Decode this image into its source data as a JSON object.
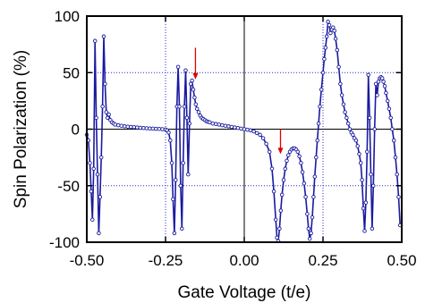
{
  "chart_data": {
    "type": "line",
    "title": "",
    "xlabel": "Gate Voltage (t/e)",
    "ylabel": "Spin Polarization (%)",
    "xlim": [
      -0.5,
      0.5
    ],
    "ylim": [
      -100,
      100
    ],
    "xticks": [
      -0.5,
      -0.25,
      0.0,
      0.25,
      0.5
    ],
    "xtick_labels": [
      "-0.50",
      "-0.25",
      "0.00",
      "0.25",
      "0.50"
    ],
    "yticks": [
      -100,
      -50,
      0,
      50,
      100
    ],
    "ytick_labels": [
      "-100",
      "-50",
      "0",
      "50",
      "100"
    ],
    "grid": "dotted at x = -0.25, 0.25 and y = -50, 50; solid zero lines",
    "colors": {
      "series": "#1a1aa0",
      "arrow": "#e00000",
      "grid": "#2a2ad0",
      "axis": "#000000"
    },
    "series": [
      {
        "marker": "open-circle",
        "points": [
          [
            -0.5,
            -5
          ],
          [
            -0.495,
            -10
          ],
          [
            -0.49,
            -30
          ],
          [
            -0.486,
            -55
          ],
          [
            -0.482,
            -80
          ],
          [
            -0.478,
            -35
          ],
          [
            -0.474,
            78
          ],
          [
            -0.47,
            10
          ],
          [
            -0.466,
            -40
          ],
          [
            -0.462,
            -92
          ],
          [
            -0.458,
            -60
          ],
          [
            -0.454,
            -25
          ],
          [
            -0.45,
            20
          ],
          [
            -0.446,
            82
          ],
          [
            -0.442,
            40
          ],
          [
            -0.438,
            15
          ],
          [
            -0.434,
            10
          ],
          [
            -0.43,
            13
          ],
          [
            -0.425,
            8
          ],
          [
            -0.42,
            6
          ],
          [
            -0.415,
            5
          ],
          [
            -0.41,
            4
          ],
          [
            -0.4,
            3.5
          ],
          [
            -0.39,
            3
          ],
          [
            -0.38,
            2.5
          ],
          [
            -0.37,
            2.2
          ],
          [
            -0.36,
            2
          ],
          [
            -0.35,
            1.8
          ],
          [
            -0.34,
            1.5
          ],
          [
            -0.33,
            1.2
          ],
          [
            -0.32,
            1
          ],
          [
            -0.31,
            0.8
          ],
          [
            -0.3,
            0.6
          ],
          [
            -0.29,
            0.5
          ],
          [
            -0.28,
            0.3
          ],
          [
            -0.27,
            0.2
          ],
          [
            -0.26,
            0
          ],
          [
            -0.25,
            -0.3
          ],
          [
            -0.245,
            -1
          ],
          [
            -0.24,
            -3
          ],
          [
            -0.235,
            -10
          ],
          [
            -0.23,
            -30
          ],
          [
            -0.226,
            -62
          ],
          [
            -0.222,
            -92
          ],
          [
            -0.218,
            -45
          ],
          [
            -0.214,
            20
          ],
          [
            -0.21,
            55
          ],
          [
            -0.206,
            20
          ],
          [
            -0.202,
            -50
          ],
          [
            -0.198,
            -88
          ],
          [
            -0.194,
            -30
          ],
          [
            -0.19,
            20
          ],
          [
            -0.186,
            52
          ],
          [
            -0.182,
            10
          ],
          [
            -0.178,
            -40
          ],
          [
            -0.174,
            5
          ],
          [
            -0.17,
            40
          ],
          [
            -0.166,
            43
          ],
          [
            -0.162,
            35
          ],
          [
            -0.158,
            28
          ],
          [
            -0.154,
            22
          ],
          [
            -0.15,
            18
          ],
          [
            -0.145,
            15
          ],
          [
            -0.14,
            12
          ],
          [
            -0.135,
            10
          ],
          [
            -0.13,
            9
          ],
          [
            -0.125,
            8
          ],
          [
            -0.12,
            7
          ],
          [
            -0.115,
            6.5
          ],
          [
            -0.11,
            6
          ],
          [
            -0.1,
            5
          ],
          [
            -0.09,
            4.5
          ],
          [
            -0.08,
            4
          ],
          [
            -0.07,
            3.5
          ],
          [
            -0.06,
            3
          ],
          [
            -0.05,
            2.5
          ],
          [
            -0.04,
            2
          ],
          [
            -0.03,
            1.5
          ],
          [
            -0.02,
            1
          ],
          [
            -0.01,
            0.5
          ],
          [
            0.0,
            0
          ],
          [
            0.01,
            -0.5
          ],
          [
            0.02,
            -1
          ],
          [
            0.03,
            -2
          ],
          [
            0.04,
            -3.5
          ],
          [
            0.05,
            -5
          ],
          [
            0.06,
            -8
          ],
          [
            0.07,
            -13
          ],
          [
            0.08,
            -20
          ],
          [
            0.088,
            -35
          ],
          [
            0.094,
            -55
          ],
          [
            0.1,
            -80
          ],
          [
            0.104,
            -96
          ],
          [
            0.108,
            -99
          ],
          [
            0.112,
            -88
          ],
          [
            0.116,
            -72
          ],
          [
            0.12,
            -58
          ],
          [
            0.125,
            -45
          ],
          [
            0.13,
            -35
          ],
          [
            0.135,
            -28
          ],
          [
            0.14,
            -23
          ],
          [
            0.145,
            -20
          ],
          [
            0.15,
            -18
          ],
          [
            0.155,
            -17
          ],
          [
            0.16,
            -17
          ],
          [
            0.165,
            -18
          ],
          [
            0.17,
            -20
          ],
          [
            0.175,
            -24
          ],
          [
            0.18,
            -30
          ],
          [
            0.185,
            -38
          ],
          [
            0.19,
            -48
          ],
          [
            0.195,
            -60
          ],
          [
            0.2,
            -75
          ],
          [
            0.204,
            -88
          ],
          [
            0.208,
            -97
          ],
          [
            0.212,
            -92
          ],
          [
            0.216,
            -78
          ],
          [
            0.22,
            -60
          ],
          [
            0.224,
            -42
          ],
          [
            0.228,
            -25
          ],
          [
            0.232,
            -10
          ],
          [
            0.236,
            5
          ],
          [
            0.24,
            20
          ],
          [
            0.245,
            35
          ],
          [
            0.25,
            50
          ],
          [
            0.254,
            62
          ],
          [
            0.258,
            72
          ],
          [
            0.262,
            82
          ],
          [
            0.266,
            95
          ],
          [
            0.27,
            92
          ],
          [
            0.274,
            85
          ],
          [
            0.278,
            88
          ],
          [
            0.282,
            90
          ],
          [
            0.286,
            87
          ],
          [
            0.29,
            80
          ],
          [
            0.295,
            70
          ],
          [
            0.3,
            55
          ],
          [
            0.305,
            40
          ],
          [
            0.31,
            30
          ],
          [
            0.315,
            22
          ],
          [
            0.32,
            15
          ],
          [
            0.325,
            10
          ],
          [
            0.33,
            5
          ],
          [
            0.335,
            0
          ],
          [
            0.34,
            -3
          ],
          [
            0.345,
            -5
          ],
          [
            0.35,
            -8
          ],
          [
            0.355,
            -10
          ],
          [
            0.36,
            -15
          ],
          [
            0.365,
            -22
          ],
          [
            0.37,
            -30
          ],
          [
            0.374,
            -45
          ],
          [
            0.378,
            -70
          ],
          [
            0.382,
            -90
          ],
          [
            0.386,
            -65
          ],
          [
            0.39,
            -20
          ],
          [
            0.394,
            48
          ],
          [
            0.398,
            10
          ],
          [
            0.402,
            -40
          ],
          [
            0.406,
            -88
          ],
          [
            0.41,
            -50
          ],
          [
            0.414,
            0
          ],
          [
            0.418,
            40
          ],
          [
            0.422,
            30
          ],
          [
            0.426,
            42
          ],
          [
            0.43,
            45
          ],
          [
            0.434,
            46
          ],
          [
            0.438,
            45
          ],
          [
            0.442,
            42
          ],
          [
            0.446,
            38
          ],
          [
            0.45,
            32
          ],
          [
            0.455,
            25
          ],
          [
            0.46,
            18
          ],
          [
            0.465,
            10
          ],
          [
            0.47,
            0
          ],
          [
            0.475,
            -10
          ],
          [
            0.48,
            -25
          ],
          [
            0.485,
            -40
          ],
          [
            0.49,
            -60
          ],
          [
            0.495,
            -85
          ]
        ]
      }
    ],
    "annotations": [
      {
        "type": "arrow",
        "x": -0.155,
        "y_from": 72,
        "y_to": 44,
        "color": "red"
      },
      {
        "type": "arrow",
        "x": 0.115,
        "y_from": 0,
        "y_to": -22,
        "color": "red"
      }
    ]
  }
}
